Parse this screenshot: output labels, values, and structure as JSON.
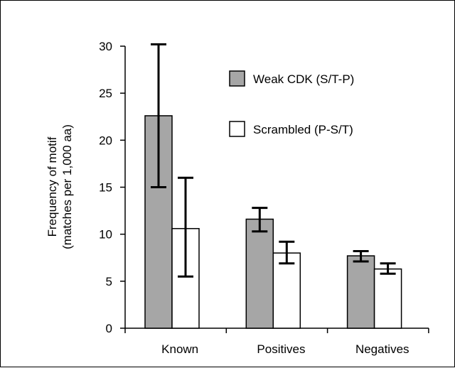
{
  "chart_data": {
    "type": "bar",
    "title": "",
    "xlabel": "",
    "ylabel_line1": "Frequency of motif",
    "ylabel_line2": "(matches per 1,000 aa)",
    "categories": [
      "Known",
      "Positives",
      "Negatives"
    ],
    "ylim": [
      0,
      30
    ],
    "yticks": [
      "0",
      "5",
      "10",
      "15",
      "20",
      "25",
      "30"
    ],
    "grid": false,
    "legend_position": "top-right",
    "series": [
      {
        "name": "Weak CDK (S/T-P)",
        "color": "#a6a6a6",
        "values": [
          22.6,
          11.6,
          7.7
        ],
        "error_low": [
          15.0,
          10.3,
          7.1
        ],
        "error_high": [
          30.2,
          12.8,
          8.2
        ]
      },
      {
        "name": "Scrambled (P-S/T)",
        "color": "#ffffff",
        "values": [
          10.6,
          8.0,
          6.3
        ],
        "error_low": [
          5.5,
          6.9,
          5.8
        ],
        "error_high": [
          16.0,
          9.2,
          6.9
        ]
      }
    ]
  }
}
